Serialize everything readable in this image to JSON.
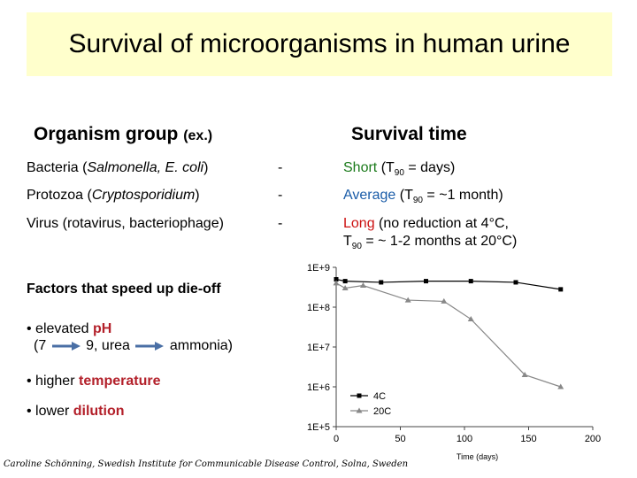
{
  "title": "Survival of microorganisms in human urine",
  "table": {
    "header_group": "Organism group",
    "header_group_ex": "(ex.)",
    "header_time": "Survival time",
    "rows": [
      {
        "organism": "Bacteria (",
        "organism_italic": "Salmonella, E. coli",
        "organism_end": ")",
        "dash": "-",
        "word": "Short",
        "rest_pre": " (T",
        "sub": "90",
        "rest_post": " = days)"
      },
      {
        "organism": "Protozoa (",
        "organism_italic": "Cryptosporidium",
        "organism_end": ")",
        "dash": "-",
        "word": "Average",
        "rest_pre": " (T",
        "sub": "90",
        "rest_post": " = ~1 month)"
      },
      {
        "organism": "Virus (rotavirus, bacteriophage)",
        "dash": "-",
        "word": "Long",
        "rest_line1": " (no reduction at 4°C,",
        "rest2_pre": "T",
        "sub": "90",
        "rest2_post": " = ~ 1-2 months at 20°C)"
      }
    ]
  },
  "factors": {
    "title": "Factors that speed up die-off",
    "items": [
      {
        "bullet": "•",
        "pre": " elevated ",
        "key": "pH"
      },
      {
        "line2_a": "(7",
        "line2_b": "9, urea",
        "line2_c": "ammonia)"
      },
      {
        "bullet": "•",
        "pre": " higher ",
        "key": "temperature"
      },
      {
        "bullet": "•",
        "pre": " lower ",
        "key": "dilution"
      }
    ]
  },
  "credit": "Caroline Schönning, Swedish Institute for Communicable Disease Control, Solna, Sweden",
  "colors": {
    "title_bg": "#ffffcc",
    "green": "#1a7a1a",
    "blue": "#1a5ca8",
    "red": "#cc1111",
    "arrow": "#4a6fa5",
    "series_4c": "#000000",
    "series_20c": "#888888"
  },
  "chart_data": {
    "type": "line",
    "title": "",
    "xlabel": "Time (days)",
    "ylabel": "",
    "log_y": true,
    "xlim": [
      0,
      200
    ],
    "ylim": [
      100000,
      1000000000
    ],
    "x_ticks": [
      0,
      50,
      100,
      150,
      200
    ],
    "y_ticks": [
      {
        "value": 1000000000,
        "label": "1E+9"
      },
      {
        "value": 100000000,
        "label": "1E+8"
      },
      {
        "value": 10000000,
        "label": "1E+7"
      },
      {
        "value": 1000000,
        "label": "1E+6"
      },
      {
        "value": 100000,
        "label": "1E+5"
      }
    ],
    "grid": false,
    "legend": "bottom-left",
    "series": [
      {
        "name": "4C",
        "marker": "square",
        "x": [
          0,
          7,
          35,
          70,
          105,
          140,
          175
        ],
        "y": [
          500000000,
          450000000,
          420000000,
          450000000,
          450000000,
          420000000,
          280000000
        ]
      },
      {
        "name": "20C",
        "marker": "triangle",
        "x": [
          0,
          7,
          21,
          56,
          84,
          105,
          147,
          175
        ],
        "y": [
          400000000,
          300000000,
          350000000,
          150000000,
          140000000,
          50000000,
          2000000,
          1000000
        ]
      }
    ]
  }
}
